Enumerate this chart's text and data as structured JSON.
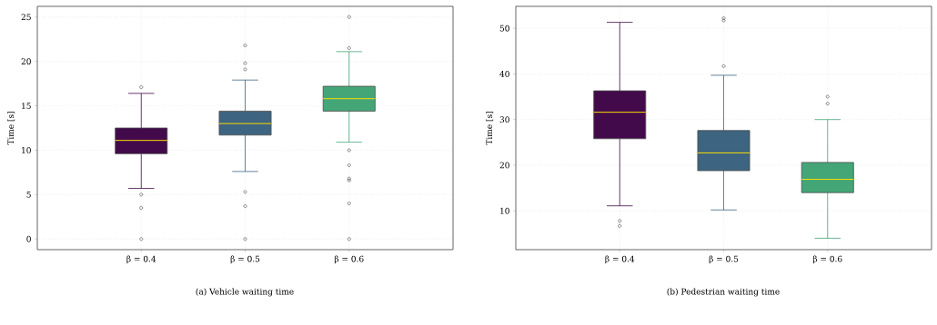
{
  "chart_data": [
    {
      "type": "box",
      "title": "(a) Vehicle waiting time",
      "ylabel": "Time [s]",
      "categories": [
        "β = 0.4",
        "β = 0.5",
        "β = 0.6"
      ],
      "colors": [
        "#420a4b",
        "#3d6480",
        "#44a677"
      ],
      "boxes": [
        {
          "low": 5.7,
          "q1": 9.6,
          "median": 11.1,
          "q3": 12.5,
          "high": 16.4,
          "outliers": [
            17.1,
            5.0,
            3.5,
            0
          ]
        },
        {
          "low": 7.6,
          "q1": 11.7,
          "median": 13.0,
          "q3": 14.4,
          "high": 17.9,
          "outliers": [
            21.8,
            19.8,
            19.1,
            5.3,
            3.7,
            0
          ]
        },
        {
          "low": 10.9,
          "q1": 14.4,
          "median": 15.8,
          "q3": 17.2,
          "high": 21.1,
          "outliers": [
            25.0,
            21.5,
            10.0,
            8.3,
            6.8,
            6.6,
            4.0,
            0
          ]
        }
      ],
      "ylim": [
        -1.2,
        26.2
      ],
      "yticks": [
        0,
        5,
        10,
        15,
        20,
        25
      ],
      "grid": true
    },
    {
      "type": "box",
      "title": "(b) Pedestrian waiting time",
      "ylabel": "Time [s]",
      "categories": [
        "β = 0.4",
        "β = 0.5",
        "β = 0.6"
      ],
      "colors": [
        "#420a4b",
        "#3d6480",
        "#44a677"
      ],
      "boxes": [
        {
          "low": 11.1,
          "q1": 25.8,
          "median": 31.6,
          "q3": 36.3,
          "high": 51.3,
          "outliers": [
            7.8,
            6.7
          ]
        },
        {
          "low": 10.2,
          "q1": 18.8,
          "median": 22.7,
          "q3": 27.6,
          "high": 39.7,
          "outliers": [
            52.2,
            51.7,
            41.7
          ]
        },
        {
          "low": 4.0,
          "q1": 14.0,
          "median": 16.9,
          "q3": 20.6,
          "high": 30.0,
          "outliers": [
            35.0,
            33.5
          ]
        }
      ],
      "ylim": [
        1.5,
        54.8
      ],
      "yticks": [
        10,
        20,
        30,
        40,
        50
      ],
      "grid": true
    }
  ]
}
